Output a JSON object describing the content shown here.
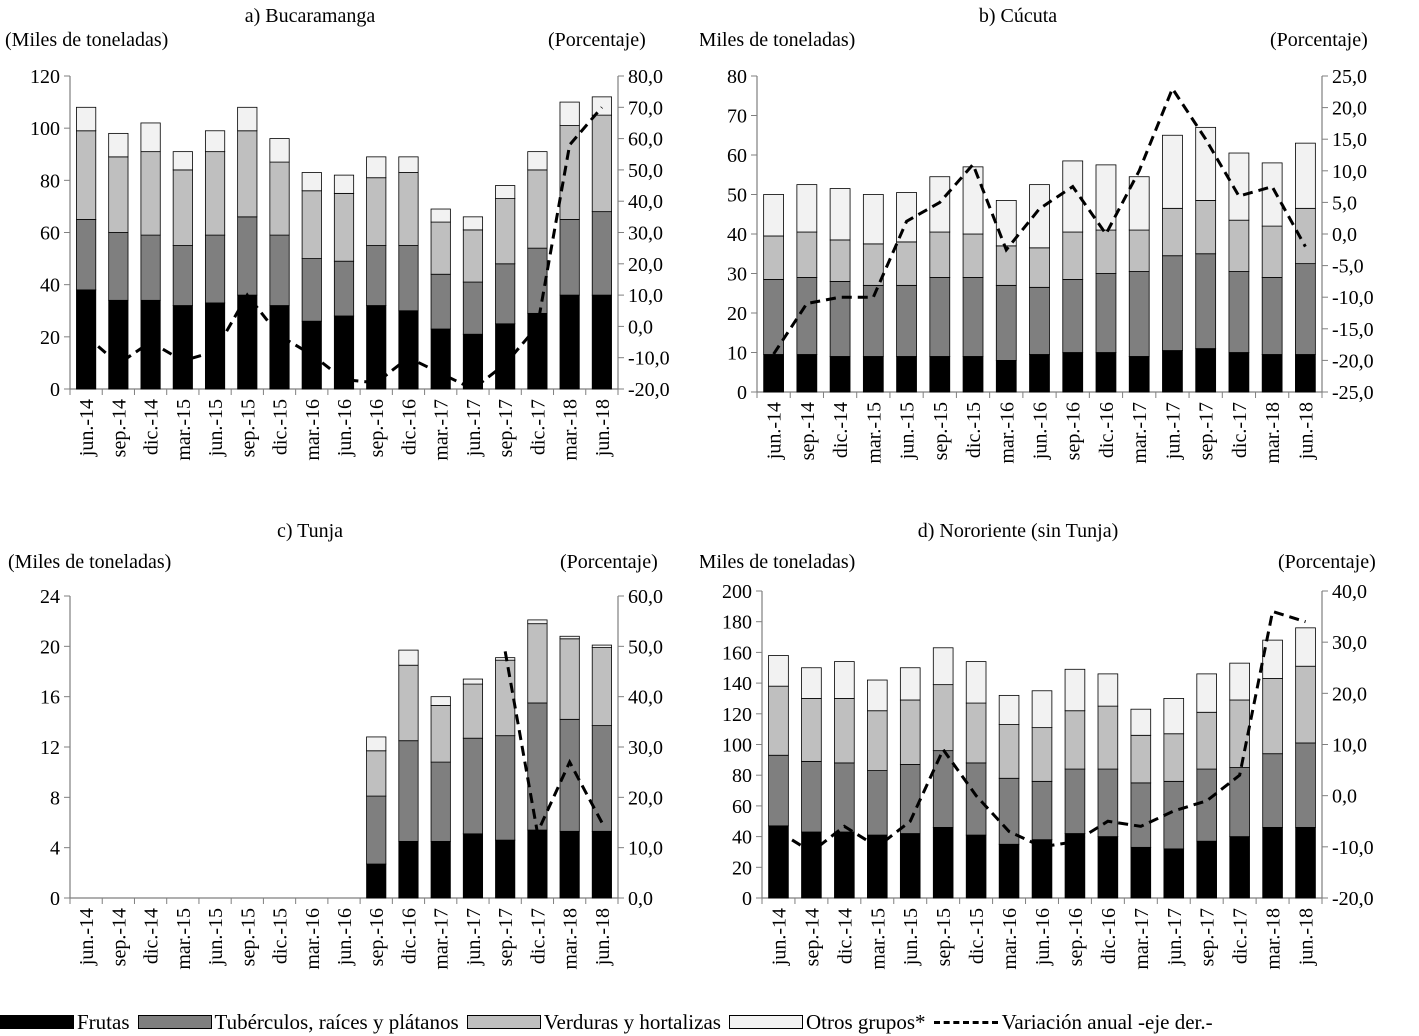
{
  "colors": {
    "frutas": "#000000",
    "tuberculos": "#7f7f7f",
    "verduras": "#bfbfbf",
    "otros": "#f2f2f2",
    "line": "#000000",
    "axis": "#7f7f7f"
  },
  "legend": {
    "frutas": "Frutas",
    "tuberculos": "Tubérculos, raíces y plátanos",
    "verduras": "Verduras y hortalizas",
    "otros": "Otros grupos*",
    "variacion": "Variación anual -eje der.-"
  },
  "chart_data": [
    {
      "type": "bar",
      "title": "a) Bucaramanga",
      "ylabel": "(Miles de toneladas)",
      "y2label": "(Porcentaje)",
      "categories": [
        "jun.-14",
        "sep.-14",
        "dic.-14",
        "mar.-15",
        "jun.-15",
        "sep.-15",
        "dic.-15",
        "mar.-16",
        "jun.-16",
        "sep.-16",
        "dic.-16",
        "mar.-17",
        "jun.-17",
        "sep.-17",
        "dic.-17",
        "mar.-18",
        "jun.-18"
      ],
      "ylim": [
        0,
        120
      ],
      "yticks": [
        0,
        20,
        40,
        60,
        80,
        100,
        120
      ],
      "ytick_labels": [
        "0",
        "20",
        "40",
        "60",
        "80",
        "100",
        "120"
      ],
      "y2lim": [
        -20,
        80
      ],
      "y2ticks": [
        -20,
        -10,
        0,
        10,
        20,
        30,
        40,
        50,
        60,
        70,
        80
      ],
      "y2tick_labels": [
        "-20,0",
        "-10,0",
        "0,0",
        "10,0",
        "20,0",
        "30,0",
        "40,0",
        "50,0",
        "60,0",
        "70,0",
        "80,0"
      ],
      "series": [
        {
          "name": "Frutas",
          "values": [
            38,
            34,
            34,
            32,
            33,
            36,
            32,
            26,
            28,
            32,
            30,
            23,
            21,
            25,
            29,
            36,
            36
          ]
        },
        {
          "name": "Tubérculos, raíces y plátanos",
          "values": [
            27,
            26,
            25,
            23,
            26,
            30,
            27,
            24,
            21,
            23,
            25,
            21,
            20,
            23,
            25,
            29,
            32
          ]
        },
        {
          "name": "Verduras y hortalizas",
          "values": [
            34,
            29,
            32,
            29,
            32,
            33,
            28,
            26,
            26,
            26,
            28,
            20,
            20,
            25,
            30,
            36,
            37
          ]
        },
        {
          "name": "Otros grupos*",
          "values": [
            9,
            9,
            11,
            7,
            8,
            9,
            9,
            7,
            7,
            8,
            6,
            5,
            5,
            5,
            7,
            9,
            7
          ]
        }
      ],
      "line": {
        "name": "Variación anual -eje der.-",
        "values": [
          -3,
          -12,
          -5,
          -11,
          -8,
          10,
          -3,
          -9,
          -17,
          -18,
          -10,
          -15,
          -20,
          -12,
          0,
          58,
          70
        ]
      }
    },
    {
      "type": "bar",
      "title": "b) Cúcuta",
      "ylabel": "(Miles de toneladas)",
      "y2label": "(Porcentaje)",
      "categories": [
        "jun.-14",
        "sep.-14",
        "dic.-14",
        "mar.-15",
        "jun.-15",
        "sep.-15",
        "dic.-15",
        "mar.-16",
        "jun.-16",
        "sep.-16",
        "dic.-16",
        "mar.-17",
        "jun.-17",
        "sep.-17",
        "dic.-17",
        "mar.-18",
        "jun.-18"
      ],
      "ylim": [
        0,
        80
      ],
      "yticks": [
        0,
        10,
        20,
        30,
        40,
        50,
        60,
        70,
        80
      ],
      "ytick_labels": [
        "0",
        "10",
        "20",
        "30",
        "40",
        "50",
        "60",
        "70",
        "80"
      ],
      "y2lim": [
        -25,
        25
      ],
      "y2ticks": [
        -25,
        -20,
        -15,
        -10,
        -5,
        0,
        5,
        10,
        15,
        20,
        25
      ],
      "y2tick_labels": [
        "-25,0",
        "-20,0",
        "-15,0",
        "-10,0",
        "-5,0",
        "0,0",
        "5,0",
        "10,0",
        "15,0",
        "20,0",
        "25,0"
      ],
      "series": [
        {
          "name": "Frutas",
          "values": [
            9.5,
            9.5,
            9,
            9,
            9,
            9,
            9,
            8,
            9.5,
            10,
            10,
            9,
            10.5,
            11,
            10,
            9.5,
            9.5
          ]
        },
        {
          "name": "Tubérculos, raíces y plátanos",
          "values": [
            19,
            19.5,
            19,
            18,
            18,
            20,
            20,
            19,
            17,
            18.5,
            20,
            21.5,
            24,
            24,
            20.5,
            19.5,
            23
          ]
        },
        {
          "name": "Verduras y hortalizas",
          "values": [
            11,
            11.5,
            10.5,
            10.5,
            11,
            11.5,
            11,
            10,
            10,
            12,
            11,
            10.5,
            12,
            13.5,
            13,
            13,
            14
          ]
        },
        {
          "name": "Otros grupos*",
          "values": [
            10.5,
            12,
            13,
            12.5,
            12.5,
            14,
            17,
            11.5,
            16,
            18,
            16.5,
            13.5,
            18.5,
            18.5,
            17,
            16,
            16.5
          ]
        }
      ],
      "line": {
        "name": "Variación anual -eje der.-",
        "values": [
          -19,
          -11,
          -10,
          -10,
          2,
          5,
          11,
          -2.5,
          4,
          7.5,
          0,
          10,
          23,
          15,
          6,
          7.5,
          -2
        ]
      }
    },
    {
      "type": "bar",
      "title": "c) Tunja",
      "ylabel": "(Miles de toneladas)",
      "y2label": "(Porcentaje)",
      "categories": [
        "jun.-14",
        "sep.-14",
        "dic.-14",
        "mar.-15",
        "jun.-15",
        "sep.-15",
        "dic.-15",
        "mar.-16",
        "jun.-16",
        "sep.-16",
        "dic.-16",
        "mar.-17",
        "jun.-17",
        "sep.-17",
        "dic.-17",
        "mar.-18",
        "jun.-18"
      ],
      "ylim": [
        0,
        24
      ],
      "yticks": [
        0,
        4,
        8,
        12,
        16,
        20,
        24
      ],
      "ytick_labels": [
        "0",
        "4",
        "8",
        "12",
        "16",
        "20",
        "24"
      ],
      "y2lim": [
        0,
        60
      ],
      "y2ticks": [
        0,
        10,
        20,
        30,
        40,
        50,
        60
      ],
      "y2tick_labels": [
        "0,0",
        "10,0",
        "20,0",
        "30,0",
        "40,0",
        "50,0",
        "60,0"
      ],
      "series": [
        {
          "name": "Frutas",
          "values": [
            0,
            0,
            0,
            0,
            0,
            0,
            0,
            0,
            0,
            2.7,
            4.5,
            4.5,
            5.1,
            4.6,
            5.4,
            5.3,
            5.3
          ]
        },
        {
          "name": "Tubérculos, raíces y plátanos",
          "values": [
            0,
            0,
            0,
            0,
            0,
            0,
            0,
            0,
            0,
            5.4,
            8,
            6.3,
            7.6,
            8.3,
            10.1,
            8.9,
            8.4
          ]
        },
        {
          "name": "Verduras y hortalizas",
          "values": [
            0,
            0,
            0,
            0,
            0,
            0,
            0,
            0,
            0,
            3.6,
            6,
            4.5,
            4.3,
            6,
            6.3,
            6.4,
            6.2
          ]
        },
        {
          "name": "Otros grupos*",
          "values": [
            0,
            0,
            0,
            0,
            0,
            0,
            0,
            0,
            0,
            1.1,
            1.2,
            0.7,
            0.4,
            0.2,
            0.3,
            0.2,
            0.2
          ]
        }
      ],
      "line": {
        "name": "Variación anual -eje der.-",
        "points": [
          [
            13,
            49
          ],
          [
            14,
            13
          ],
          [
            15,
            27
          ],
          [
            16,
            15
          ]
        ]
      }
    },
    {
      "type": "bar",
      "title": "d) Nororiente (sin Tunja)",
      "ylabel": "(Miles de toneladas)",
      "y2label": "(Porcentaje)",
      "categories": [
        "jun.-14",
        "sep.-14",
        "dic.-14",
        "mar.-15",
        "jun.-15",
        "sep.-15",
        "dic.-15",
        "mar.-16",
        "jun.-16",
        "sep.-16",
        "dic.-16",
        "mar.-17",
        "jun.-17",
        "sep.-17",
        "dic.-17",
        "mar.-18",
        "jun.-18"
      ],
      "ylim": [
        0,
        200
      ],
      "yticks": [
        0,
        20,
        40,
        60,
        80,
        100,
        120,
        140,
        160,
        180,
        200
      ],
      "ytick_labels": [
        "0",
        "20",
        "40",
        "60",
        "80",
        "100",
        "120",
        "140",
        "160",
        "180",
        "200"
      ],
      "y2lim": [
        -20,
        40
      ],
      "y2ticks": [
        -20,
        -10,
        0,
        10,
        20,
        30,
        40
      ],
      "y2tick_labels": [
        "-20,0",
        "-10,0",
        "0,0",
        "10,0",
        "20,0",
        "30,0",
        "40,0"
      ],
      "series": [
        {
          "name": "Frutas",
          "values": [
            47,
            43,
            43,
            41,
            42,
            46,
            41,
            35,
            38,
            42,
            40,
            33,
            32,
            37,
            40,
            46,
            46
          ]
        },
        {
          "name": "Tubérculos, raíces y plátanos",
          "values": [
            46,
            46,
            45,
            42,
            45,
            50,
            47,
            43,
            38,
            42,
            44,
            42,
            44,
            47,
            45,
            48,
            55
          ]
        },
        {
          "name": "Verduras y hortalizas",
          "values": [
            45,
            41,
            42,
            39,
            42,
            43,
            39,
            35,
            35,
            38,
            41,
            31,
            31,
            37,
            44,
            49,
            50
          ]
        },
        {
          "name": "Otros grupos*",
          "values": [
            20,
            20,
            24,
            20,
            21,
            24,
            27,
            19,
            24,
            27,
            21,
            17,
            23,
            25,
            24,
            25,
            25
          ]
        }
      ],
      "line": {
        "name": "Variación anual -eje der.-",
        "values": [
          -7,
          -11,
          -6,
          -10,
          -5,
          9,
          0,
          -7,
          -10,
          -9,
          -5,
          -6,
          -3,
          -1,
          4,
          36,
          34
        ]
      }
    }
  ]
}
